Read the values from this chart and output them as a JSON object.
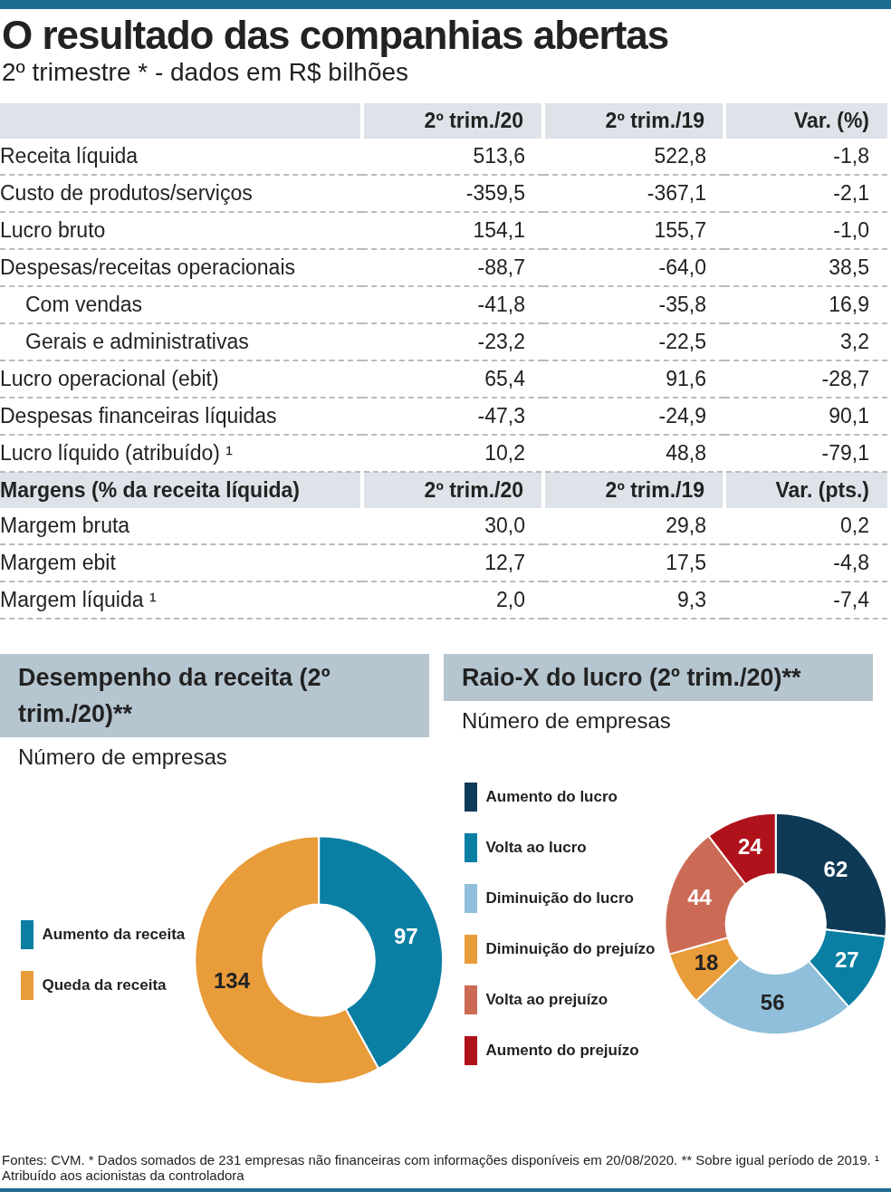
{
  "chart_data": [
    {
      "type": "other",
      "title": "O resultado das companhias abertas",
      "subtitle": "2º trimestre * - dados em R$ bilhões",
      "annotations": [
        "2º trim./20",
        "2º trim./19",
        "Var. (%)",
        "Receita líquida",
        "513,6",
        "522,8",
        "-1,8",
        "Custo de produtos/serviços",
        "-359,5",
        "-367,1",
        "-2,1",
        "Lucro bruto",
        "154,1",
        "155,7",
        "-1,0",
        "Despesas/receitas operacionais",
        "-88,7",
        "-64,0",
        "38,5",
        "Com vendas",
        "-41,8",
        "-35,8",
        "16,9",
        "Gerais e administrativas",
        "-23,2",
        "-22,5",
        "3,2",
        "Lucro operacional (ebit)",
        "65,4",
        "91,6",
        "-28,7",
        "Despesas financeiras líquidas",
        "-47,3",
        "-24,9",
        "90,1",
        "Lucro líquido (atribuído) ¹",
        "10,2",
        "48,8",
        "-79,1",
        "Margens (% da receita líquida)",
        "2º trim./20",
        "2º trim./19",
        "Var. (pts.)",
        "Margem bruta",
        "30,0",
        "29,8",
        "0,2",
        "Margem ebit",
        "12,7",
        "17,5",
        "-4,8",
        "Margem líquida ¹",
        "2,0",
        "9,3",
        "-7,4"
      ]
    },
    {
      "type": "donut",
      "title": "Desempenho da receita (2º trim./20)**",
      "subtitle": "Número de empresas",
      "categories": [
        "Aumento da receita",
        "Queda da receita"
      ],
      "values": [
        97,
        134
      ],
      "colors": [
        "#0a7fa3",
        "#e89c3a"
      ],
      "data_labels": true,
      "legend": "left"
    },
    {
      "type": "donut",
      "title": "Raio-X do lucro (2º trim./20)**",
      "subtitle": "Número de empresas",
      "categories": [
        "Aumento do lucro",
        "Volta ao lucro",
        "Diminuição do lucro",
        "Diminuição do prejuízo",
        "Volta ao prejuízo",
        "Aumento do prejuízo"
      ],
      "values": [
        62,
        27,
        56,
        18,
        44,
        24
      ],
      "colors": [
        "#0f3a57",
        "#0a7fa3",
        "#8fbfda",
        "#e89c3a",
        "#cc6b55",
        "#b0121b"
      ],
      "data_labels": true,
      "legend": "left",
      "annotations": [
        "Fontes: CVM. * Dados somados de 231 empresas não financeiras com informações disponíveis em 20/08/2020. ** Sobre igual período de 2019. ¹ Atribuído aos acionistas da controladora"
      ]
    }
  ]
}
